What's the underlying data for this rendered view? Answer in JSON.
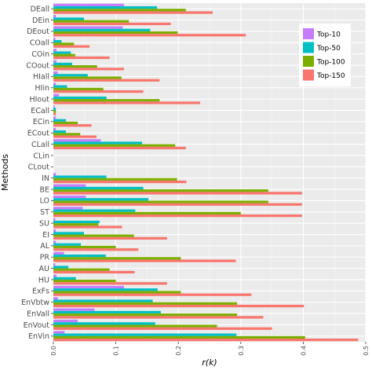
{
  "chart_data": {
    "type": "bar",
    "orientation": "horizontal",
    "xlabel": "r(k)",
    "ylabel": "Methods",
    "xlim": [
      0,
      0.5
    ],
    "x_ticks": [
      "0.0",
      "0.1",
      "0.2",
      "0.3",
      "0.4",
      "0.5"
    ],
    "grid": true,
    "legend_position": "top-right",
    "categories": [
      "DEall",
      "DEin",
      "DEout",
      "COall",
      "COin",
      "COout",
      "HIall",
      "HIin",
      "HIout",
      "ECall",
      "ECin",
      "ECout",
      "CLall",
      "CLin",
      "CLout",
      "IN",
      "BE",
      "LO",
      "ST",
      "SU",
      "EI",
      "AL",
      "PR",
      "AU",
      "HU",
      "ExFs",
      "EnVbtw",
      "EnVall",
      "EnVout",
      "EnVin"
    ],
    "series": [
      {
        "name": "Top-10",
        "color": "#C77CFF",
        "values": [
          0.113,
          0.004,
          0.111,
          0.003,
          0.005,
          0.005,
          0.007,
          0.004,
          0.009,
          0.002,
          0.004,
          0.004,
          0.076,
          0,
          0,
          0.004,
          0.052,
          0.052,
          0.047,
          0.003,
          0.004,
          0.004,
          0.017,
          0.003,
          0.005,
          0.113,
          0.007,
          0.066,
          0.039,
          0.018
        ]
      },
      {
        "name": "Top-50",
        "color": "#00BFC4",
        "values": [
          0.166,
          0.049,
          0.155,
          0.013,
          0.028,
          0.03,
          0.055,
          0.022,
          0.085,
          0.004,
          0.02,
          0.02,
          0.142,
          0,
          0,
          0.085,
          0.144,
          0.152,
          0.131,
          0.074,
          0.049,
          0.044,
          0.084,
          0.024,
          0.036,
          0.167,
          0.159,
          0.172,
          0.163,
          0.293
        ]
      },
      {
        "name": "Top-100",
        "color": "#7CAE00",
        "values": [
          0.212,
          0.121,
          0.199,
          0.033,
          0.035,
          0.07,
          0.109,
          0.08,
          0.17,
          0.004,
          0.039,
          0.043,
          0.195,
          0,
          0,
          0.198,
          0.344,
          0.344,
          0.3,
          0.072,
          0.129,
          0.1,
          0.204,
          0.09,
          0.1,
          0.204,
          0.294,
          0.294,
          0.262,
          0.403
        ]
      },
      {
        "name": "Top-150",
        "color": "#F8766D",
        "values": [
          0.255,
          0.188,
          0.308,
          0.058,
          0.09,
          0.113,
          0.17,
          0.144,
          0.235,
          0.004,
          0.061,
          0.069,
          0.212,
          0,
          0,
          0.213,
          0.398,
          0.398,
          0.398,
          0.11,
          0.182,
          0.136,
          0.292,
          0.13,
          0.182,
          0.317,
          0.401,
          0.336,
          0.35,
          0.488
        ]
      }
    ]
  }
}
